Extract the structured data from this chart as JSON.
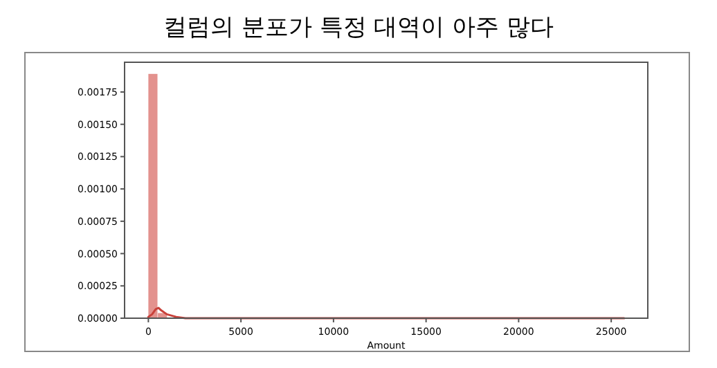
{
  "chart_data": {
    "type": "histogram",
    "title": "컬럼의 분포가 특정 대역이 아주 많다",
    "xlabel": "Amount",
    "bins": [
      0,
      514,
      1028,
      1542,
      2056,
      2570,
      3084,
      3598,
      4112,
      4626,
      5140,
      5654,
      6168,
      6682,
      7196,
      7710,
      8224,
      8738,
      9252,
      9766,
      10280,
      10794,
      11308,
      11822,
      12336,
      12850,
      13364,
      13878,
      14392,
      14906,
      15420,
      15934,
      16448,
      16962,
      17476,
      17990,
      18504,
      19018,
      19532,
      20046,
      20560,
      21074,
      21588,
      22102,
      22616,
      23130,
      23644,
      24158,
      24672,
      25186,
      25700
    ],
    "series": [
      {
        "color": "#e3928e",
        "values": [
          0.00189,
          4e-05,
          null,
          0,
          0,
          0,
          0,
          0,
          0,
          0,
          0,
          0,
          0,
          0,
          0,
          0,
          0,
          0,
          0,
          0,
          0,
          0,
          0,
          0,
          0,
          0,
          0,
          0,
          0,
          0,
          0,
          0,
          0,
          0,
          0,
          0,
          0,
          0,
          0,
          0,
          0,
          0,
          0,
          0,
          0,
          0,
          0,
          0,
          0,
          0
        ]
      },
      {
        "type": "line",
        "color": "#c8413a",
        "x": [
          0,
          200,
          400,
          550,
          700,
          1000,
          1500,
          2000,
          3000,
          5000,
          10000,
          15000,
          20000,
          25700
        ],
        "values": [
          1e-05,
          3e-05,
          7e-05,
          8e-05,
          6e-05,
          3e-05,
          1e-05,
          0,
          0,
          0,
          0,
          0,
          0,
          0
        ]
      }
    ],
    "xlim": [
      -1285,
      26976
    ],
    "ylim": [
      0,
      0.00198
    ],
    "xticks": [
      0,
      5000,
      10000,
      15000,
      20000,
      25000
    ],
    "yticks": [
      {
        "value": 0,
        "label": "0.00000"
      },
      {
        "value": 0.00025,
        "label": "0.00025"
      },
      {
        "value": 0.0005,
        "label": "0.00050"
      },
      {
        "value": 0.00075,
        "label": "0.00075"
      },
      {
        "value": 0.001,
        "label": "0.00100"
      },
      {
        "value": 0.00125,
        "label": "0.00125"
      },
      {
        "value": 0.0015,
        "label": "0.00150"
      },
      {
        "value": 0.00175,
        "label": "0.00175"
      }
    ],
    "grid": false
  }
}
